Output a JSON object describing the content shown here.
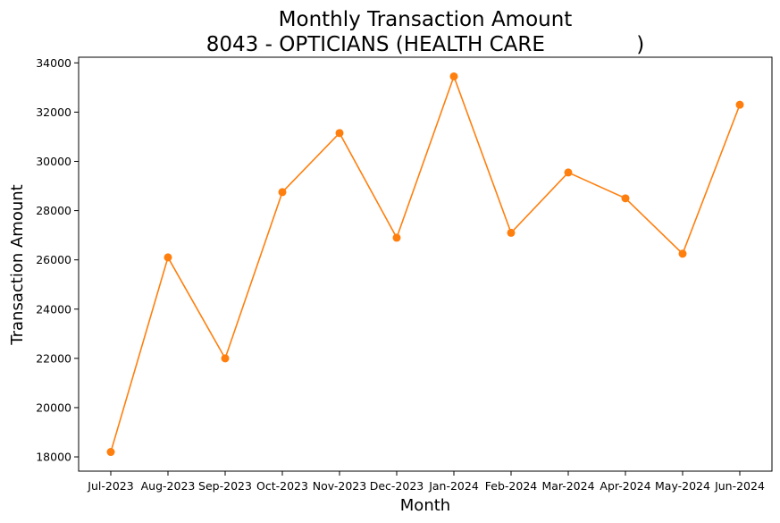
{
  "chart_data": {
    "type": "line",
    "title": "Monthly Transaction Amount",
    "subtitle": "8043 - OPTICIANS (HEALTH CARE              )",
    "xlabel": "Month",
    "ylabel": "Transaction Amount",
    "categories": [
      "Jul-2023",
      "Aug-2023",
      "Sep-2023",
      "Oct-2023",
      "Nov-2023",
      "Dec-2023",
      "Jan-2024",
      "Feb-2024",
      "Mar-2024",
      "Apr-2024",
      "May-2024",
      "Jun-2024"
    ],
    "series": [
      {
        "color": "#ff7f0e",
        "values": [
          18200,
          26100,
          22000,
          28750,
          31150,
          26900,
          33450,
          27100,
          29550,
          28500,
          26250,
          32300
        ]
      }
    ],
    "yticks": [
      18000,
      20000,
      22000,
      24000,
      26000,
      28000,
      30000,
      32000,
      34000
    ],
    "ylim": [
      17420,
      34230
    ],
    "grid": false,
    "legend": "none"
  }
}
